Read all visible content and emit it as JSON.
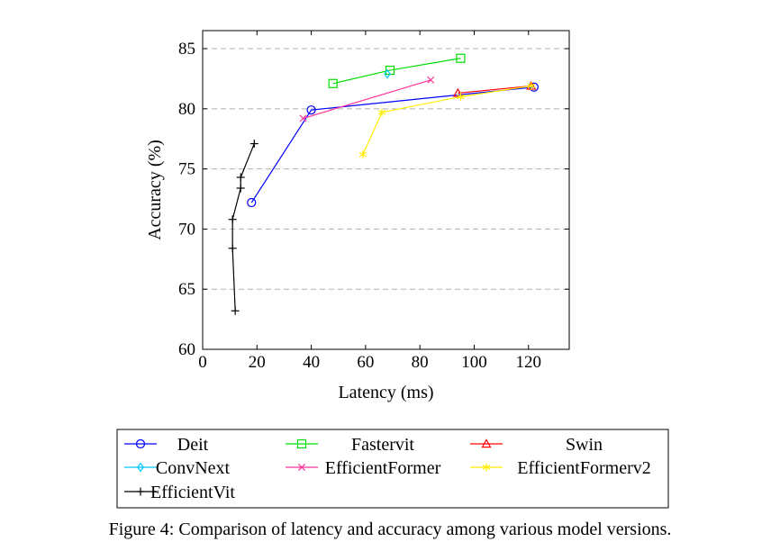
{
  "caption": "Figure 4: Comparison of latency and accuracy among various model versions.",
  "chart_data": {
    "type": "line",
    "title": "",
    "xlabel": "Latency (ms)",
    "ylabel": "Accuracy (%)",
    "xlim": [
      0,
      135
    ],
    "ylim": [
      60,
      86.5
    ],
    "xticks": [
      0,
      20,
      40,
      60,
      80,
      100,
      120
    ],
    "yticks": [
      60,
      65,
      70,
      75,
      80,
      85
    ],
    "grid": "horizontal dashed",
    "legend_position": "below",
    "series": [
      {
        "name": "Deit",
        "color": "#0000ff",
        "marker": "circle",
        "x": [
          18,
          40,
          122
        ],
        "y": [
          72.2,
          79.9,
          81.8
        ]
      },
      {
        "name": "Fastervit",
        "color": "#00dd00",
        "marker": "square",
        "x": [
          48,
          69,
          95
        ],
        "y": [
          82.1,
          83.2,
          84.2
        ]
      },
      {
        "name": "Swin",
        "color": "#ff0000",
        "marker": "triangle",
        "x": [
          94,
          121
        ],
        "y": [
          81.3,
          81.9
        ]
      },
      {
        "name": "ConvNext",
        "color": "#00c8ff",
        "marker": "diamond",
        "x": [
          68
        ],
        "y": [
          82.9
        ]
      },
      {
        "name": "EfficientFormer",
        "color": "#ff3399",
        "marker": "x",
        "x": [
          37,
          84
        ],
        "y": [
          79.2,
          82.4
        ]
      },
      {
        "name": "EfficientFormerv2",
        "color": "#ffee00",
        "marker": "asterisk",
        "x": [
          59,
          66,
          95,
          121
        ],
        "y": [
          76.2,
          79.7,
          81.0,
          81.9
        ]
      },
      {
        "name": "EfficientVit",
        "color": "#000000",
        "marker": "plus",
        "x": [
          12,
          11,
          11,
          14,
          14,
          19
        ],
        "y": [
          63.2,
          68.4,
          70.8,
          73.4,
          74.3,
          77.1
        ]
      }
    ]
  }
}
